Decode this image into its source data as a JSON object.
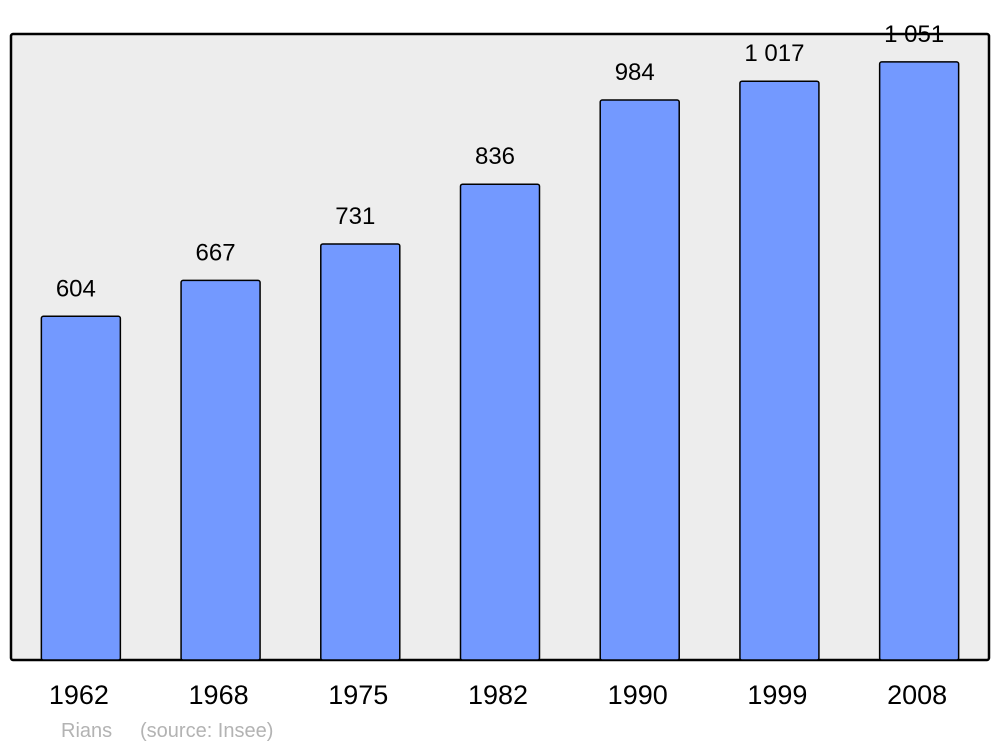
{
  "chart_data": {
    "type": "bar",
    "categories": [
      "1962",
      "1968",
      "1975",
      "1982",
      "1990",
      "1999",
      "2008"
    ],
    "values": [
      604,
      667,
      731,
      836,
      984,
      1017,
      1051
    ],
    "value_labels": [
      "604",
      "667",
      "731",
      "836",
      "984",
      "1 017",
      "1 051"
    ],
    "title": "",
    "xlabel": "",
    "ylabel": "",
    "ylim": [
      0,
      1100
    ],
    "grid": false,
    "bar_color": "#7399ff",
    "background_color": "#ededed",
    "footer": {
      "place": "Rians",
      "source": "(source: Insee)"
    }
  }
}
